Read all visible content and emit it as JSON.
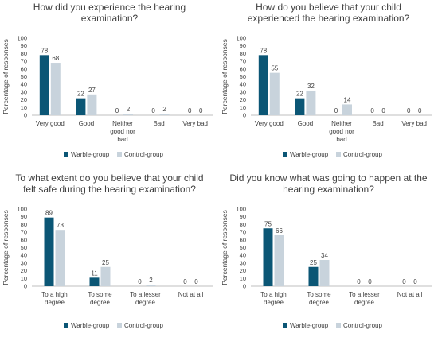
{
  "colors": {
    "warble": "#0b5675",
    "control": "#c8d3dc",
    "axis": "#bfbfbf",
    "text": "#404040"
  },
  "chart_data": [
    {
      "type": "bar",
      "title": [
        "How did you experience the hearing",
        "examination?"
      ],
      "ylabel": "Percentage of responses",
      "ylim": [
        0,
        100
      ],
      "yticks": [
        0,
        10,
        20,
        30,
        40,
        50,
        60,
        70,
        80,
        90,
        100
      ],
      "categories": [
        [
          "Very good"
        ],
        [
          "Good"
        ],
        [
          "Neither",
          "good nor",
          "bad"
        ],
        [
          "Bad"
        ],
        [
          "Very bad"
        ]
      ],
      "series": [
        {
          "name": "Warble-group",
          "values": [
            78,
            22,
            0,
            0,
            0
          ]
        },
        {
          "name": "Control-group",
          "values": [
            68,
            27,
            2,
            2,
            0
          ]
        }
      ],
      "legend": "bottom",
      "grid": false
    },
    {
      "type": "bar",
      "title": [
        "How do you believe that your child",
        "experienced the hearing examination?"
      ],
      "ylabel": "Percentage of responses",
      "ylim": [
        0,
        100
      ],
      "yticks": [
        0,
        10,
        20,
        30,
        40,
        50,
        60,
        70,
        80,
        90,
        100
      ],
      "categories": [
        [
          "Very good"
        ],
        [
          "Good"
        ],
        [
          "Neither",
          "good nor",
          "bad"
        ],
        [
          "Bad"
        ],
        [
          "Very bad"
        ]
      ],
      "series": [
        {
          "name": "Warble-group",
          "values": [
            78,
            22,
            0,
            0,
            0
          ]
        },
        {
          "name": "Control-group",
          "values": [
            55,
            32,
            14,
            0,
            0
          ]
        }
      ],
      "legend": "bottom",
      "grid": false
    },
    {
      "type": "bar",
      "title": [
        "To what extent do you believe that your child",
        "felt safe during the hearing examination?"
      ],
      "ylabel": "Percentage of responses",
      "ylim": [
        0,
        100
      ],
      "yticks": [
        0,
        10,
        20,
        30,
        40,
        50,
        60,
        70,
        80,
        90,
        100
      ],
      "categories": [
        [
          "To a high",
          "degree"
        ],
        [
          "To some",
          "degree"
        ],
        [
          "To a lesser",
          "degree"
        ],
        [
          "Not at all"
        ]
      ],
      "series": [
        {
          "name": "Warble-group",
          "values": [
            89,
            11,
            0,
            0
          ]
        },
        {
          "name": "Control-group",
          "values": [
            73,
            25,
            2,
            0
          ]
        }
      ],
      "legend": "bottom",
      "grid": false
    },
    {
      "type": "bar",
      "title": [
        "Did you know what was going to happen at the",
        "hearing examination?"
      ],
      "ylabel": "Percentage of responses",
      "ylim": [
        0,
        100
      ],
      "yticks": [
        0,
        10,
        20,
        30,
        40,
        50,
        60,
        70,
        80,
        90,
        100
      ],
      "categories": [
        [
          "To a high",
          "degree"
        ],
        [
          "To some",
          "degree"
        ],
        [
          "To a lesser",
          "degree"
        ],
        [
          "Not at all"
        ]
      ],
      "series": [
        {
          "name": "Warble-group",
          "values": [
            75,
            25,
            0,
            0
          ]
        },
        {
          "name": "Control-group",
          "values": [
            66,
            34,
            0,
            0
          ]
        }
      ],
      "legend": "bottom",
      "grid": false
    }
  ]
}
